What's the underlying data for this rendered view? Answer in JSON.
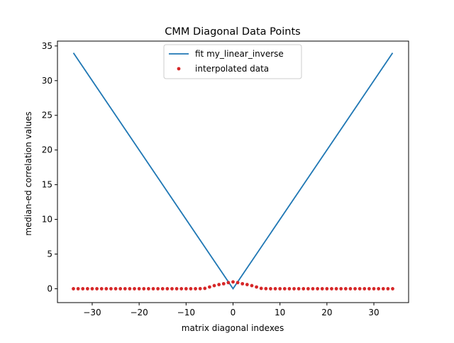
{
  "chart_data": {
    "type": "line",
    "title": "CMM Diagonal Data Points",
    "xlabel": "matrix diagonal indexes",
    "ylabel": "median-ed correlation values",
    "xlim": [
      -37.4,
      37.4
    ],
    "ylim": [
      -2.0,
      35.7
    ],
    "xticks": [
      -30,
      -20,
      -10,
      0,
      10,
      20,
      30
    ],
    "xtick_labels": [
      "−30",
      "−20",
      "−10",
      "0",
      "10",
      "20",
      "30"
    ],
    "yticks": [
      0,
      5,
      10,
      15,
      20,
      25,
      30,
      35
    ],
    "ytick_labels": [
      "0",
      "5",
      "10",
      "15",
      "20",
      "25",
      "30",
      "35"
    ],
    "grid": false,
    "legend_position": "upper center",
    "series": [
      {
        "name": "fit my_linear_inverse",
        "kind": "line",
        "color": "#1f77b4",
        "x": [
          -34,
          0,
          34
        ],
        "y": [
          34,
          0,
          34
        ]
      },
      {
        "name": "interpolated data",
        "kind": "scatter",
        "color": "#d62728",
        "x": [
          -34,
          -33,
          -32,
          -31,
          -30,
          -29,
          -28,
          -27,
          -26,
          -25,
          -24,
          -23,
          -22,
          -21,
          -20,
          -19,
          -18,
          -17,
          -16,
          -15,
          -14,
          -13,
          -12,
          -11,
          -10,
          -9,
          -8,
          -7,
          -6,
          -5,
          -4,
          -3,
          -2,
          -1,
          0,
          1,
          2,
          3,
          4,
          5,
          6,
          7,
          8,
          9,
          10,
          11,
          12,
          13,
          14,
          15,
          16,
          17,
          18,
          19,
          20,
          21,
          22,
          23,
          24,
          25,
          26,
          27,
          28,
          29,
          30,
          31,
          32,
          33,
          34
        ],
        "y": [
          0,
          0,
          0,
          0,
          0,
          0,
          0,
          0,
          0,
          0,
          0,
          0,
          0,
          0,
          0,
          0,
          0,
          0,
          0,
          0,
          0,
          0,
          0,
          0,
          0,
          0,
          0,
          0.01,
          0.05,
          0.25,
          0.45,
          0.6,
          0.72,
          0.88,
          0.98,
          0.88,
          0.72,
          0.6,
          0.45,
          0.25,
          0.05,
          0.01,
          0,
          0,
          0,
          0,
          0,
          0,
          0,
          0,
          0,
          0,
          0,
          0,
          0,
          0,
          0,
          0,
          0,
          0,
          0,
          0,
          0,
          0,
          0,
          0,
          0,
          0,
          0
        ]
      }
    ]
  }
}
